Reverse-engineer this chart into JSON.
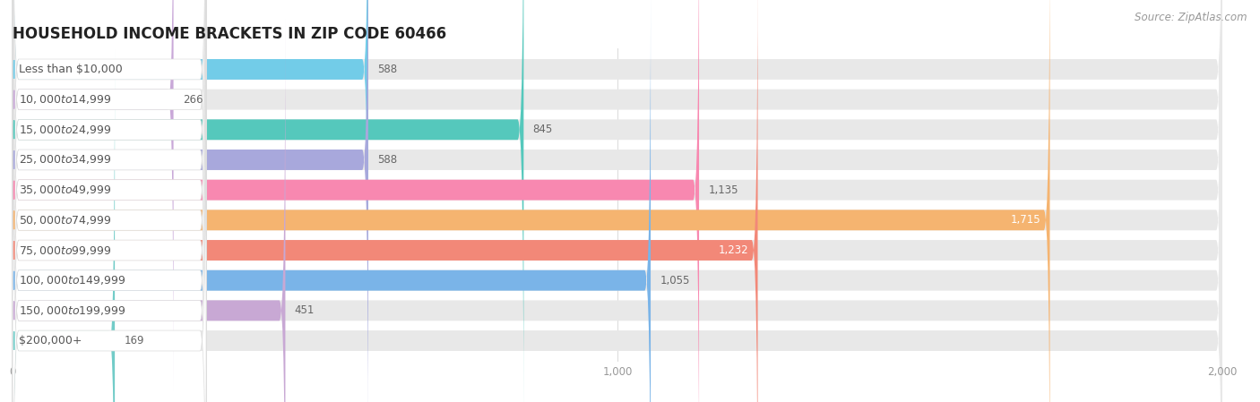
{
  "title": "HOUSEHOLD INCOME BRACKETS IN ZIP CODE 60466",
  "source": "Source: ZipAtlas.com",
  "categories": [
    "Less than $10,000",
    "$10,000 to $14,999",
    "$15,000 to $24,999",
    "$25,000 to $34,999",
    "$35,000 to $49,999",
    "$50,000 to $74,999",
    "$75,000 to $99,999",
    "$100,000 to $149,999",
    "$150,000 to $199,999",
    "$200,000+"
  ],
  "values": [
    588,
    266,
    845,
    588,
    1135,
    1715,
    1232,
    1055,
    451,
    169
  ],
  "bar_colors": [
    "#72cce8",
    "#c9a8d8",
    "#55c8bc",
    "#a8a8dc",
    "#f888b0",
    "#f5b470",
    "#f28878",
    "#7ab4e8",
    "#c8a8d4",
    "#72ccc8"
  ],
  "xlim": [
    0,
    2000
  ],
  "background_color": "#ffffff",
  "bar_bg_color": "#e8e8e8",
  "label_bg_color": "#f0f0f0",
  "title_fontsize": 12,
  "label_fontsize": 9,
  "value_fontsize": 8.5,
  "source_fontsize": 8.5,
  "bar_height": 0.68,
  "value_label_color_inside": "#ffffff",
  "value_label_color_outside": "#666666",
  "text_color": "#555555",
  "grid_color": "#dddddd",
  "tick_color": "#999999"
}
